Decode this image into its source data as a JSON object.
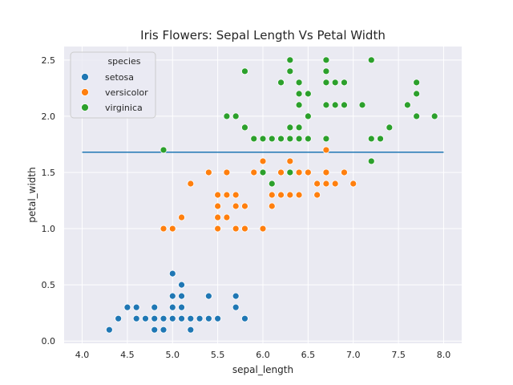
{
  "chart_data": {
    "type": "scatter",
    "title": "Iris Flowers: Sepal Length Vs Petal Width",
    "xlabel": "sepal_length",
    "ylabel": "petal_width",
    "xlim": [
      3.8,
      8.2
    ],
    "ylim": [
      -0.02,
      2.62
    ],
    "x_ticks": [
      "4.0",
      "4.5",
      "5.0",
      "5.5",
      "6.0",
      "6.5",
      "7.0",
      "7.5",
      "8.0"
    ],
    "y_ticks": [
      "0.0",
      "0.5",
      "1.0",
      "1.5",
      "2.0",
      "2.5"
    ],
    "grid": true,
    "style": "seaborn darkgrid",
    "legend": {
      "title": "species",
      "placement": "upper-left"
    },
    "series": [
      {
        "name": "setosa",
        "color": "#1f77b4",
        "points": [
          [
            4.3,
            0.1
          ],
          [
            4.4,
            0.2
          ],
          [
            4.5,
            0.3
          ],
          [
            4.6,
            0.2
          ],
          [
            4.6,
            0.3
          ],
          [
            4.7,
            0.2
          ],
          [
            4.8,
            0.1
          ],
          [
            4.8,
            0.2
          ],
          [
            4.8,
            0.3
          ],
          [
            4.9,
            0.1
          ],
          [
            4.9,
            0.2
          ],
          [
            5.0,
            0.2
          ],
          [
            5.0,
            0.3
          ],
          [
            5.0,
            0.4
          ],
          [
            5.0,
            0.6
          ],
          [
            5.1,
            0.2
          ],
          [
            5.1,
            0.3
          ],
          [
            5.1,
            0.4
          ],
          [
            5.1,
            0.5
          ],
          [
            5.2,
            0.1
          ],
          [
            5.2,
            0.2
          ],
          [
            5.3,
            0.2
          ],
          [
            5.4,
            0.2
          ],
          [
            5.4,
            0.4
          ],
          [
            5.5,
            0.2
          ],
          [
            5.7,
            0.3
          ],
          [
            5.7,
            0.4
          ],
          [
            5.8,
            0.2
          ]
        ]
      },
      {
        "name": "versicolor",
        "color": "#ff7f0e",
        "points": [
          [
            4.9,
            1.0
          ],
          [
            5.0,
            1.0
          ],
          [
            5.1,
            1.1
          ],
          [
            5.2,
            1.4
          ],
          [
            5.4,
            1.5
          ],
          [
            5.5,
            1.0
          ],
          [
            5.5,
            1.1
          ],
          [
            5.5,
            1.2
          ],
          [
            5.5,
            1.3
          ],
          [
            5.6,
            1.1
          ],
          [
            5.6,
            1.3
          ],
          [
            5.6,
            1.5
          ],
          [
            5.7,
            1.0
          ],
          [
            5.7,
            1.2
          ],
          [
            5.7,
            1.3
          ],
          [
            5.8,
            1.0
          ],
          [
            5.8,
            1.2
          ],
          [
            5.9,
            1.5
          ],
          [
            6.0,
            1.0
          ],
          [
            6.0,
            1.5
          ],
          [
            6.0,
            1.6
          ],
          [
            6.1,
            1.2
          ],
          [
            6.1,
            1.3
          ],
          [
            6.1,
            1.4
          ],
          [
            6.2,
            1.3
          ],
          [
            6.2,
            1.5
          ],
          [
            6.3,
            1.3
          ],
          [
            6.3,
            1.5
          ],
          [
            6.3,
            1.6
          ],
          [
            6.4,
            1.3
          ],
          [
            6.4,
            1.5
          ],
          [
            6.5,
            1.5
          ],
          [
            6.6,
            1.3
          ],
          [
            6.6,
            1.4
          ],
          [
            6.7,
            1.4
          ],
          [
            6.7,
            1.5
          ],
          [
            6.7,
            1.7
          ],
          [
            6.8,
            1.4
          ],
          [
            6.9,
            1.5
          ],
          [
            7.0,
            1.4
          ]
        ]
      },
      {
        "name": "virginica",
        "color": "#2ca02c",
        "points": [
          [
            4.9,
            1.7
          ],
          [
            5.6,
            2.0
          ],
          [
            5.7,
            2.0
          ],
          [
            5.8,
            1.9
          ],
          [
            5.8,
            2.4
          ],
          [
            5.9,
            1.8
          ],
          [
            6.0,
            1.5
          ],
          [
            6.0,
            1.8
          ],
          [
            6.1,
            1.4
          ],
          [
            6.1,
            1.8
          ],
          [
            6.2,
            1.8
          ],
          [
            6.2,
            2.3
          ],
          [
            6.3,
            1.5
          ],
          [
            6.3,
            1.8
          ],
          [
            6.3,
            1.9
          ],
          [
            6.3,
            2.4
          ],
          [
            6.3,
            2.5
          ],
          [
            6.4,
            1.8
          ],
          [
            6.4,
            1.9
          ],
          [
            6.4,
            2.1
          ],
          [
            6.4,
            2.2
          ],
          [
            6.4,
            2.3
          ],
          [
            6.5,
            1.8
          ],
          [
            6.5,
            2.0
          ],
          [
            6.5,
            2.2
          ],
          [
            6.7,
            1.8
          ],
          [
            6.7,
            2.1
          ],
          [
            6.7,
            2.3
          ],
          [
            6.7,
            2.4
          ],
          [
            6.7,
            2.5
          ],
          [
            6.8,
            2.1
          ],
          [
            6.8,
            2.3
          ],
          [
            6.9,
            2.1
          ],
          [
            6.9,
            2.3
          ],
          [
            7.1,
            2.1
          ],
          [
            7.2,
            1.6
          ],
          [
            7.2,
            1.8
          ],
          [
            7.2,
            2.5
          ],
          [
            7.3,
            1.8
          ],
          [
            7.4,
            1.9
          ],
          [
            7.6,
            2.1
          ],
          [
            7.7,
            2.0
          ],
          [
            7.7,
            2.2
          ],
          [
            7.7,
            2.3
          ],
          [
            7.9,
            2.0
          ]
        ]
      }
    ],
    "reference_line": {
      "y": 1.68,
      "x_from": 4.0,
      "x_to": 8.0,
      "color": "#1f77b4"
    }
  }
}
